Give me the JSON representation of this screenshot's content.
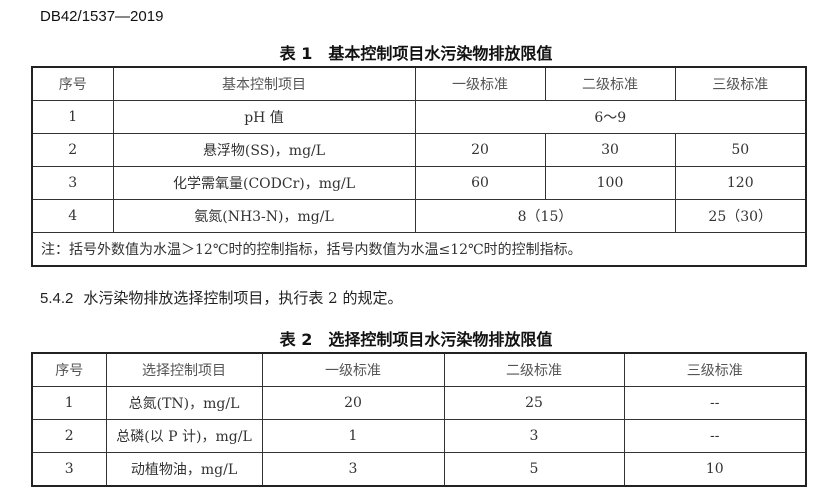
{
  "doc_id": "DB42/1537—2019",
  "table1": {
    "caption": "表 1　基本控制项目水污染物排放限值",
    "headers": [
      "序号",
      "基本控制项目",
      "一级标准",
      "二级标准",
      "三级标准"
    ],
    "rows": [
      {
        "no": "1",
        "item": "pH 值",
        "merged_all": "6～9"
      },
      {
        "no": "2",
        "item": "悬浮物(SS)，mg/L",
        "v1": "20",
        "v2": "30",
        "v3": "50"
      },
      {
        "no": "3",
        "item": "化学需氧量(CODCr)，mg/L",
        "v1": "60",
        "v2": "100",
        "v3": "120"
      },
      {
        "no": "4",
        "item": "氨氮(NH3-N)，mg/L",
        "merged_12": "8（15）",
        "v3": "25（30）"
      }
    ],
    "note": "注：括号外数值为水温＞12℃时的控制指标，括号内数值为水温≤12℃时的控制指标。"
  },
  "paragraph": {
    "number": "5.4.2",
    "text": "水污染物排放选择控制项目，执行表 2 的规定。"
  },
  "table2": {
    "caption": "表 2　选择控制项目水污染物排放限值",
    "headers": [
      "序号",
      "选择控制项目",
      "一级标准",
      "二级标准",
      "三级标准"
    ],
    "rows": [
      {
        "no": "1",
        "item": "总氮(TN)，mg/L",
        "v1": "20",
        "v2": "25",
        "v3": "--"
      },
      {
        "no": "2",
        "item": "总磷(以 P 计)，mg/L",
        "v1": "1",
        "v2": "3",
        "v3": "--"
      },
      {
        "no": "3",
        "item": "动植物油，mg/L",
        "v1": "3",
        "v2": "5",
        "v3": "10"
      }
    ]
  }
}
